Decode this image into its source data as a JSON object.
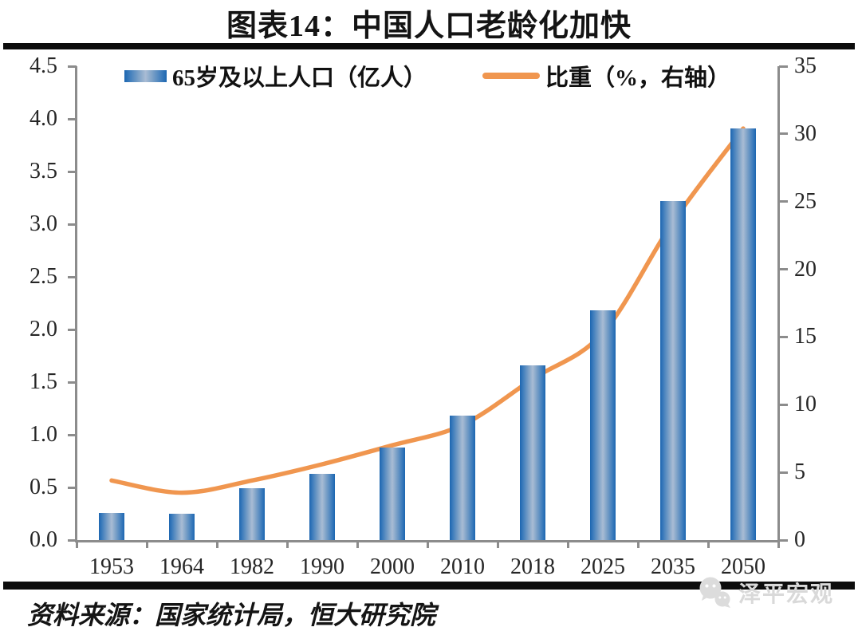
{
  "title": "图表14：中国人口老龄化加快",
  "legend": {
    "bar_label": "65岁及以上人口（亿人）",
    "line_label": "比重（%，右轴）"
  },
  "footer": {
    "source": "资料来源：国家统计局，恒大研究院",
    "watermark": "泽平宏观"
  },
  "colors": {
    "bar_edge_blue": "#1C66B0",
    "bar_center_blue": "#A9BCD4",
    "line_orange": "#F0964F",
    "axis_gray": "#8C8C8C",
    "divider_black": "#0D0D0D",
    "watermark_gray": "#D9D9D9"
  },
  "chart_data": {
    "type": "combo",
    "title": "图表14：中国人口老龄化加快",
    "categories": [
      "1953",
      "1964",
      "1982",
      "1990",
      "2000",
      "2010",
      "2018",
      "2025",
      "2035",
      "2050"
    ],
    "series": [
      {
        "name": "65岁及以上人口（亿人）",
        "chart_type": "bar",
        "axis": "left",
        "values": [
          0.26,
          0.25,
          0.49,
          0.63,
          0.88,
          1.18,
          1.66,
          2.18,
          3.22,
          3.91
        ]
      },
      {
        "name": "比重（%，右轴）",
        "chart_type": "line",
        "axis": "right",
        "values": [
          4.4,
          3.5,
          4.4,
          5.6,
          7.0,
          8.5,
          11.9,
          15.3,
          23.5,
          30.4
        ]
      }
    ],
    "left_axis": {
      "range": [
        0,
        4.5
      ],
      "tick_step": 0.5,
      "tick_labels": [
        "0.0",
        "0.5",
        "1.0",
        "1.5",
        "2.0",
        "2.5",
        "3.0",
        "3.5",
        "4.0",
        "4.5"
      ]
    },
    "right_axis": {
      "range": [
        0,
        35
      ],
      "tick_step": 5,
      "tick_labels": [
        "0",
        "5",
        "10",
        "15",
        "20",
        "25",
        "30",
        "35"
      ]
    },
    "grid": false,
    "legend_position": "top",
    "line_smooth": true,
    "source": "资料来源：国家统计局，恒大研究院"
  }
}
